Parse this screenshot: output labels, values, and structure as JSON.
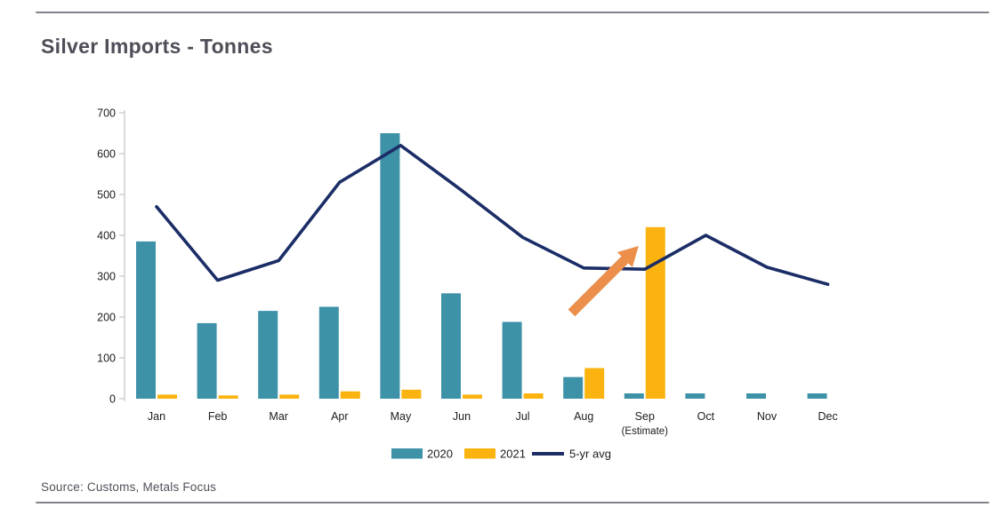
{
  "header": {
    "title": "Silver Imports - Tonnes"
  },
  "footer": {
    "source": "Source: Customs, Metals Focus"
  },
  "colors": {
    "bar_2020": "#3E92A8",
    "bar_2021": "#FBB40F",
    "line_5yr_avg": "#1B2D66",
    "arrow": "#EC8F4B",
    "axis": "#c4c4ca",
    "tick_text": "#1c1c1c",
    "title_text": "#4e4e58",
    "divider": "#83838b"
  },
  "chart_data": {
    "type": "bar",
    "title": "Silver Imports - Tonnes",
    "xlabel": "",
    "ylabel": "",
    "categories": [
      "Jan",
      "Feb",
      "Mar",
      "Apr",
      "May",
      "Jun",
      "Jul",
      "Aug",
      "Sep",
      "Oct",
      "Nov",
      "Dec"
    ],
    "category_sublabels": {
      "Sep": "(Estimate)"
    },
    "series": [
      {
        "name": "2020",
        "type": "bar",
        "color": "#3E92A8",
        "values": [
          385,
          185,
          215,
          225,
          650,
          258,
          188,
          53,
          13,
          13,
          13,
          13
        ]
      },
      {
        "name": "2021",
        "type": "bar",
        "color": "#FBB40F",
        "values": [
          10,
          8,
          10,
          18,
          22,
          10,
          13,
          75,
          420,
          null,
          null,
          null
        ]
      },
      {
        "name": "5-yr avg",
        "type": "line",
        "color": "#1B2D66",
        "values": [
          470,
          290,
          338,
          530,
          620,
          510,
          395,
          320,
          317,
          400,
          322,
          280
        ]
      }
    ],
    "ylim": [
      0,
      700
    ],
    "yticks": [
      0,
      100,
      200,
      300,
      400,
      500,
      600,
      700
    ],
    "grid": false,
    "legend_position": "bottom-center",
    "annotation": {
      "type": "arrow",
      "color": "#EC8F4B",
      "from": {
        "x_index": 6.8,
        "value": 210
      },
      "to": {
        "x_index": 7.9,
        "value": 374
      },
      "points_to": "Sep (Estimate) 2021 bar"
    }
  }
}
